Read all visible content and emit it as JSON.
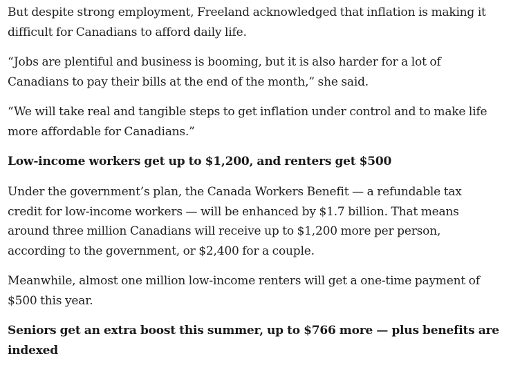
{
  "article": {
    "p1": [
      "But despite strong employment, Freeland acknowledged that inflation is making it",
      "difficult for Canadians to afford daily life."
    ],
    "p2": [
      "“Jobs are plentiful and business is booming, but it is also harder for a lot of",
      "Canadians to pay their bills at the end of the month,” she said."
    ],
    "p3": [
      "“We will take real and tangible steps to get inflation under control and to make life",
      "more affordable for Canadians.”"
    ],
    "h1": [
      "Low-income workers get up to $1,200, and renters get $500"
    ],
    "p4": [
      "Under the government’s plan, the Canada Workers Benefit — a refundable tax",
      "credit for low-income workers — will be enhanced by $1.7 billion. That means",
      "around three million Canadians will receive up to $1,200 more per person,",
      "according to the government, or $2,400 for a couple."
    ],
    "p5": [
      "Meanwhile, almost one million low-income renters will get a one-time payment of",
      "$500 this year."
    ],
    "h2": [
      "Seniors get an extra boost this summer, up to $766 more — plus benefits are",
      "indexed"
    ]
  }
}
